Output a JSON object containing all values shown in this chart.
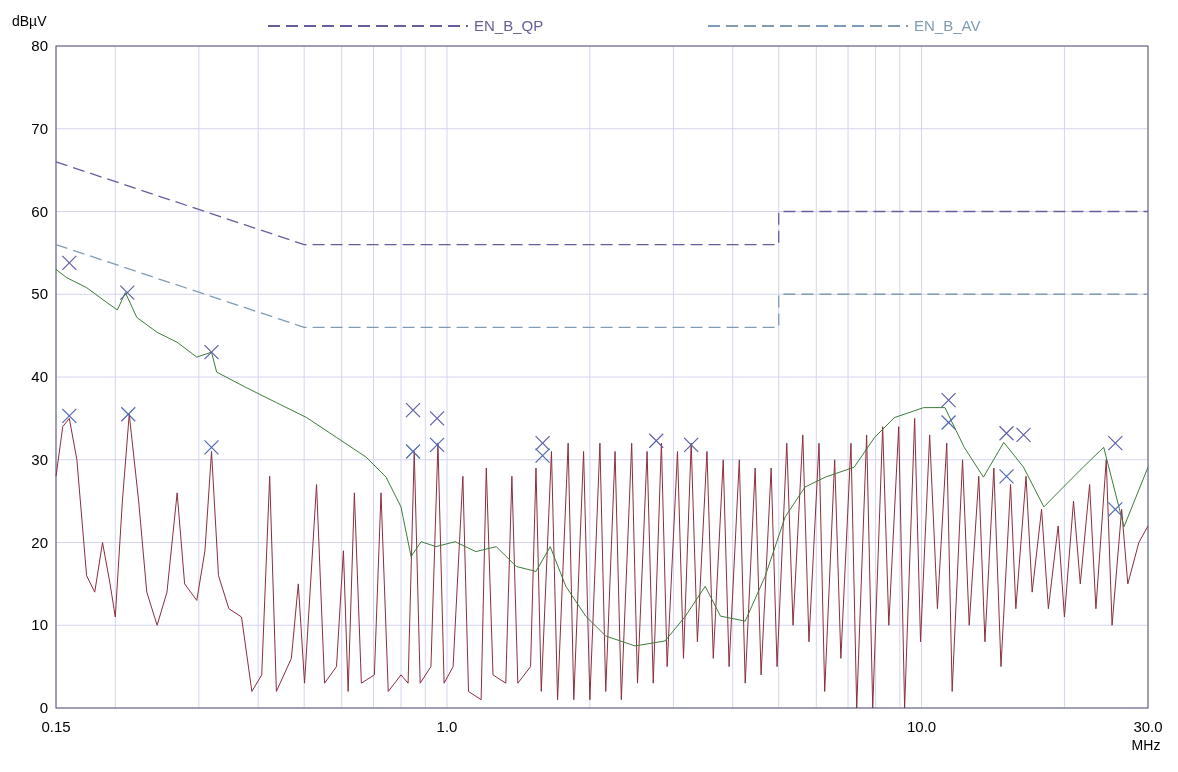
{
  "chart_data": {
    "type": "line",
    "xlabel": "MHz",
    "ylabel": "dBµV",
    "log": "x",
    "grid": true,
    "legend": "top",
    "xlim": [
      0.15,
      30
    ],
    "ylim": [
      0,
      80
    ],
    "xticks": [
      {
        "value": 0.15,
        "label": "0.15"
      },
      {
        "value": 0.2,
        "label": null
      },
      {
        "value": 0.3,
        "label": null
      },
      {
        "value": 0.4,
        "label": null
      },
      {
        "value": 0.5,
        "label": null
      },
      {
        "value": 0.6,
        "label": null
      },
      {
        "value": 0.7,
        "label": null
      },
      {
        "value": 0.8,
        "label": null
      },
      {
        "value": 0.9,
        "label": null
      },
      {
        "value": 1,
        "label": "1.0"
      },
      {
        "value": 2,
        "label": null
      },
      {
        "value": 3,
        "label": null
      },
      {
        "value": 4,
        "label": null
      },
      {
        "value": 5,
        "label": null
      },
      {
        "value": 6,
        "label": null
      },
      {
        "value": 7,
        "label": null
      },
      {
        "value": 8,
        "label": null
      },
      {
        "value": 9,
        "label": null
      },
      {
        "value": 10,
        "label": "10.0"
      },
      {
        "value": 20,
        "label": null
      },
      {
        "value": 30,
        "label": "30.0"
      }
    ],
    "yticks": [
      0,
      10,
      20,
      30,
      40,
      50,
      60,
      70,
      80
    ],
    "series": [
      {
        "name": "EN_B_QP",
        "line_style": "dashed",
        "color": "#6a5c9c",
        "x": [
          0.15,
          0.5,
          5,
          5,
          30
        ],
        "values": [
          66,
          56,
          56,
          60,
          60
        ]
      },
      {
        "name": "EN_B_AV",
        "line_style": "dashed",
        "color": "#7f9cb4",
        "x": [
          0.15,
          0.5,
          5,
          5,
          30
        ],
        "values": [
          56,
          46,
          46,
          50,
          50
        ]
      },
      {
        "line_style": "solid",
        "color": "#8b2e3e",
        "x": [
          0.15,
          0.155,
          0.16,
          0.166,
          0.174,
          0.181,
          0.188,
          0.195,
          0.2,
          0.207,
          0.214,
          0.224,
          0.233,
          0.245,
          0.257,
          0.27,
          0.28,
          0.297,
          0.309,
          0.319,
          0.33,
          0.347,
          0.369,
          0.388,
          0.407,
          0.423,
          0.437,
          0.47,
          0.486,
          0.501,
          0.531,
          0.552,
          0.585,
          0.605,
          0.619,
          0.638,
          0.66,
          0.703,
          0.726,
          0.752,
          0.8,
          0.828,
          0.853,
          0.878,
          0.925,
          0.957,
          0.986,
          1.03,
          1.08,
          1.11,
          1.18,
          1.21,
          1.25,
          1.33,
          1.37,
          1.41,
          1.5,
          1.54,
          1.58,
          1.66,
          1.71,
          1.8,
          1.85,
          1.94,
          2,
          2.1,
          2.16,
          2.26,
          2.33,
          2.45,
          2.52,
          2.64,
          2.72,
          2.83,
          2.91,
          3.06,
          3.15,
          3.27,
          3.37,
          3.53,
          3.64,
          3.82,
          3.93,
          4.13,
          4.25,
          4.46,
          4.59,
          4.82,
          4.96,
          5.2,
          5.36,
          5.62,
          5.79,
          6.08,
          6.25,
          6.56,
          6.76,
          7.1,
          7.3,
          7.66,
          7.89,
          8.28,
          8.53,
          8.95,
          9.21,
          9.67,
          9.95,
          10.4,
          10.8,
          11.3,
          11.6,
          12.2,
          12.6,
          13.2,
          13.6,
          14.2,
          14.7,
          15.4,
          15.8,
          16.6,
          17.1,
          17.9,
          18.5,
          19.4,
          20,
          20.9,
          21.6,
          22.6,
          23.3,
          24.5,
          25.2,
          26.4,
          27.2,
          28.7,
          30
        ],
        "values": [
          28,
          34,
          35,
          30,
          16,
          14,
          20,
          15,
          11,
          25,
          35.5,
          25,
          14,
          10,
          14,
          26,
          15,
          13,
          19,
          31,
          16,
          12,
          11,
          2,
          4,
          28,
          2,
          6,
          15,
          3,
          27,
          3,
          5,
          19,
          2,
          26,
          3,
          4,
          26,
          2,
          4,
          3,
          31,
          3,
          5,
          32,
          3,
          5,
          28,
          2,
          1,
          29,
          4,
          3,
          28,
          3,
          5,
          29,
          2,
          31,
          1,
          32,
          1,
          31,
          1,
          32,
          2,
          31,
          1,
          32,
          3,
          31,
          3,
          32,
          5,
          31,
          6,
          32,
          8,
          31,
          6,
          30,
          5,
          30,
          3,
          29,
          4,
          29,
          5,
          32,
          10,
          33,
          8,
          32,
          2,
          30,
          6,
          32,
          0,
          33,
          0,
          34,
          10,
          34,
          0,
          35,
          8,
          33,
          12,
          32,
          2,
          30,
          10,
          28,
          8,
          29,
          5,
          27,
          12,
          28,
          14,
          24,
          12,
          22,
          11,
          25,
          15,
          27,
          12,
          30,
          10,
          24,
          15,
          20,
          22
        ]
      },
      {
        "line_style": "solid",
        "color": "#3c7d3a",
        "x": [
          0.15,
          0.158,
          0.174,
          0.192,
          0.202,
          0.21,
          0.222,
          0.245,
          0.27,
          0.297,
          0.319,
          0.327,
          0.378,
          0.437,
          0.506,
          0.585,
          0.676,
          0.744,
          0.8,
          0.84,
          0.882,
          0.948,
          1.04,
          1.15,
          1.27,
          1.4,
          1.54,
          1.65,
          1.78,
          1.96,
          2.16,
          2.49,
          2.88,
          3.18,
          3.5,
          3.77,
          4.25,
          4.68,
          5.16,
          5.68,
          6.27,
          7.21,
          7.96,
          8.77,
          10.1,
          11.2,
          12.3,
          13.5,
          14.9,
          16.4,
          18.1,
          19.9,
          21.9,
          24.2,
          26.7,
          30
        ],
        "values": [
          53,
          52,
          50.8,
          49,
          48.1,
          50.2,
          47.2,
          45.4,
          44.2,
          42.4,
          43,
          40.6,
          38.7,
          36.9,
          35.1,
          32.7,
          30.3,
          27.9,
          24.3,
          18.3,
          20.1,
          19.5,
          20.1,
          18.9,
          19.5,
          17.1,
          16.5,
          19.5,
          14.7,
          11.1,
          8.7,
          7.5,
          8.1,
          11.1,
          14.7,
          11.1,
          10.5,
          15.9,
          23.1,
          26.7,
          27.9,
          29.1,
          32.7,
          35.1,
          36.3,
          36.3,
          31.5,
          27.9,
          32.1,
          29.1,
          24.3,
          26.7,
          29.1,
          31.5,
          21.9,
          29.1
        ]
      },
      {
        "type": "scatter",
        "marker": "cross",
        "color": "#6060a8",
        "x": [
          0.16,
          0.212,
          0.319,
          0.848,
          0.953,
          1.59,
          2.76,
          3.27,
          11.4,
          15.1,
          16.4,
          25.6
        ],
        "values": [
          53.8,
          50.2,
          43,
          36,
          35,
          32,
          32.3,
          31.8,
          37.2,
          33.2,
          33,
          32
        ]
      },
      {
        "type": "scatter",
        "marker": "cross",
        "color": "#5068b0",
        "x": [
          0.16,
          0.213,
          0.319,
          0.848,
          0.953,
          1.59,
          11.4,
          15.1,
          25.6
        ],
        "values": [
          35.3,
          35.5,
          31.5,
          31,
          31.8,
          30.5,
          34.5,
          28,
          24
        ]
      }
    ]
  }
}
